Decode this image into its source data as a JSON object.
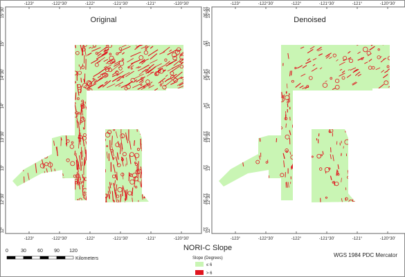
{
  "panels": [
    {
      "title": "Original"
    },
    {
      "title": "Denoised"
    }
  ],
  "longitude_labels": [
    "-123°",
    "-122°30'",
    "-122°",
    "-121°30'",
    "-121°",
    "-120°30'"
  ],
  "latitude_labels": [
    "15°30'",
    "15°",
    "14°30'",
    "14°",
    "13°30'",
    "13°",
    "12°30'",
    "12°"
  ],
  "scale_bar": {
    "labels": [
      "0",
      "30",
      "60",
      "90",
      "120"
    ],
    "unit": "Kilometers"
  },
  "legend": {
    "title": "NORI-C Slope",
    "subtitle": "Slope (Degrees)",
    "items": [
      {
        "label": "≤ 6",
        "color": "#c9f5b4"
      },
      {
        "label": "> 6",
        "color": "#e0141e"
      }
    ]
  },
  "projection": "WGS 1984 PDC Mercator"
}
